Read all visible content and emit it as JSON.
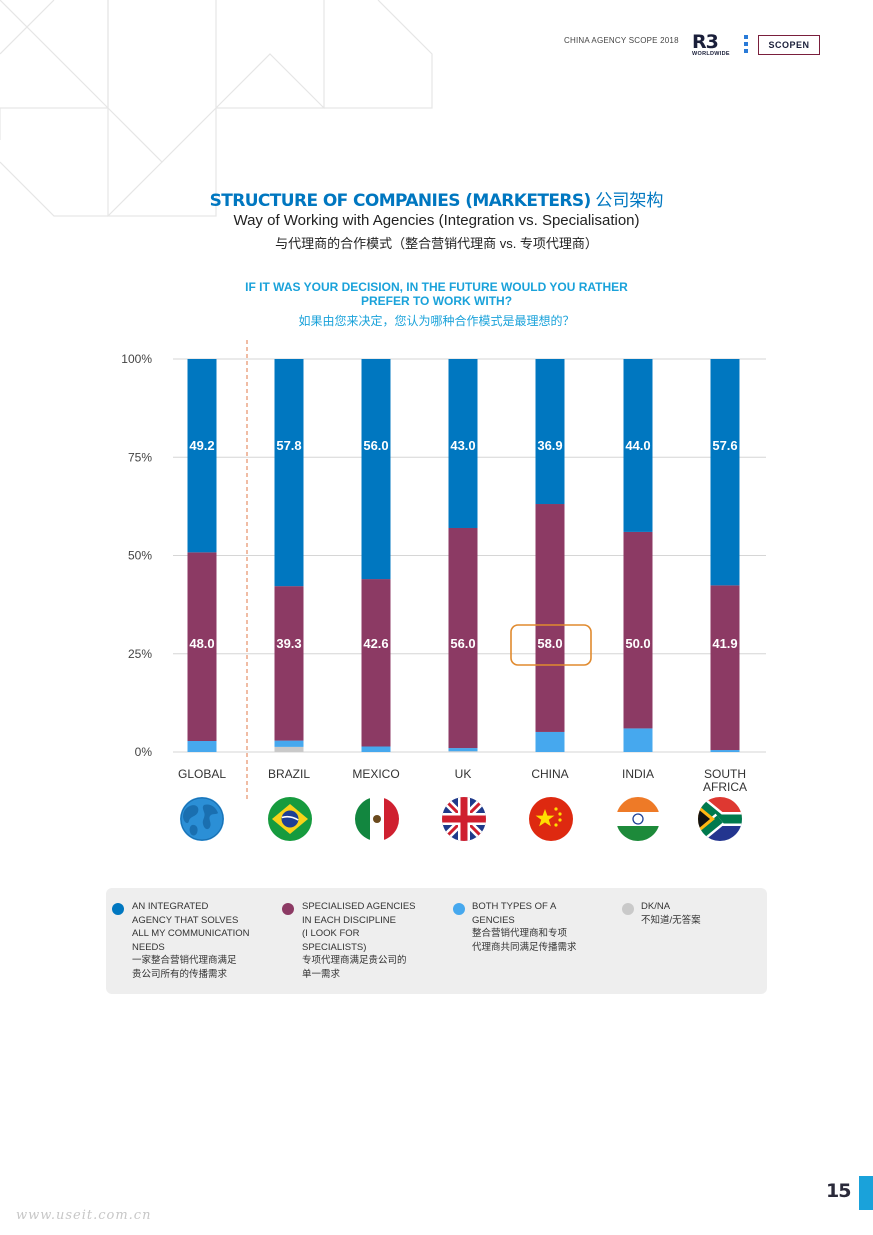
{
  "header": {
    "publication": "CHINA AGENCY SCOPE 2018",
    "logo_r3": "R3",
    "logo_r3_sub": "WORLDWIDE",
    "logo_scopen": "SCOPEN"
  },
  "title": {
    "en": "STRUCTURE OF COMPANIES (MARKETERS)",
    "cn": " 公司架构"
  },
  "subtitle": "Way of Working with Agencies (Integration vs. Specialisation)",
  "subtitle_cn": "与代理商的合作模式（整合营销代理商 vs. 专项代理商）",
  "question": {
    "line1": "IF IT WAS YOUR DECISION, IN THE FUTURE WOULD YOU RATHER",
    "line2": "PREFER TO WORK WITH?",
    "cn": "如果由您来决定，您认为哪种合作模式是最理想的？"
  },
  "colors": {
    "integrated": "#0077c0",
    "specialised": "#8c3a64",
    "both": "#46a8ee",
    "dkna": "#c9c9c9",
    "highlight": "#e08a2e",
    "separator": "#e07a4a"
  },
  "chart_data": {
    "type": "bar",
    "stacked": true,
    "ylim": [
      0,
      100
    ],
    "yticks": [
      "0%",
      "25%",
      "50%",
      "75%",
      "100%"
    ],
    "categories": [
      "GLOBAL",
      "BRAZIL",
      "MEXICO",
      "UK",
      "CHINA",
      "INDIA",
      "SOUTH AFRICA"
    ],
    "series": [
      {
        "name": "AN INTEGRATED AGENCY THAT SOLVES ALL MY COMMUNICATION NEEDS",
        "values": [
          49.2,
          57.8,
          56.0,
          43.0,
          36.9,
          44.0,
          57.6
        ]
      },
      {
        "name": "SPECIALISED AGENCIES IN EACH DISCIPLINE (I LOOK FOR SPECIALISTS)",
        "values": [
          48.0,
          39.3,
          42.6,
          56.0,
          58.0,
          50.0,
          41.9
        ]
      },
      {
        "name": "BOTH TYPES OF A GENCIES",
        "values": [
          2.8,
          1.6,
          1.4,
          0.8,
          5.1,
          6.0,
          0.5
        ]
      },
      {
        "name": "DK/NA",
        "values": [
          0,
          1.3,
          0,
          0.2,
          0,
          0,
          0
        ]
      }
    ],
    "value_labels": {
      "integrated": [
        "49.2",
        "57.8",
        "56.0",
        "43.0",
        "36.9",
        "44.0",
        "57.6"
      ],
      "specialised": [
        "48.0",
        "39.3",
        "42.6",
        "56.0",
        "58.0",
        "50.0",
        "41.9"
      ]
    },
    "highlighted": {
      "category": "CHINA",
      "series": "specialised"
    },
    "grid": true,
    "legend_position": "bottom"
  },
  "legend": [
    {
      "lines": [
        "AN INTEGRATED",
        "AGENCY THAT SOLVES",
        "ALL MY COMMUNICATION",
        "NEEDS"
      ],
      "cn": [
        "一家整合营销代理商满足",
        "贵公司所有的传播需求"
      ],
      "color": "#0077c0"
    },
    {
      "lines": [
        "SPECIALISED AGENCIES",
        "IN EACH DISCIPLINE",
        "(I LOOK FOR",
        "SPECIALISTS)"
      ],
      "cn": [
        "专项代理商满足贵公司的",
        "单一需求"
      ],
      "color": "#8c3a64"
    },
    {
      "lines": [
        "BOTH TYPES OF A",
        "GENCIES"
      ],
      "cn": [
        "整合营销代理商和专项",
        "代理商共同满足传播需求"
      ],
      "color": "#46a8ee"
    },
    {
      "lines": [
        "DK/NA"
      ],
      "cn": [
        "不知道/无答案"
      ],
      "color": "#c9c9c9"
    }
  ],
  "flags": [
    "globe-icon",
    "brazil-flag",
    "mexico-flag",
    "uk-flag",
    "china-flag",
    "india-flag",
    "south-africa-flag"
  ],
  "page_number": "15",
  "watermark": "www.useit.com.cn"
}
